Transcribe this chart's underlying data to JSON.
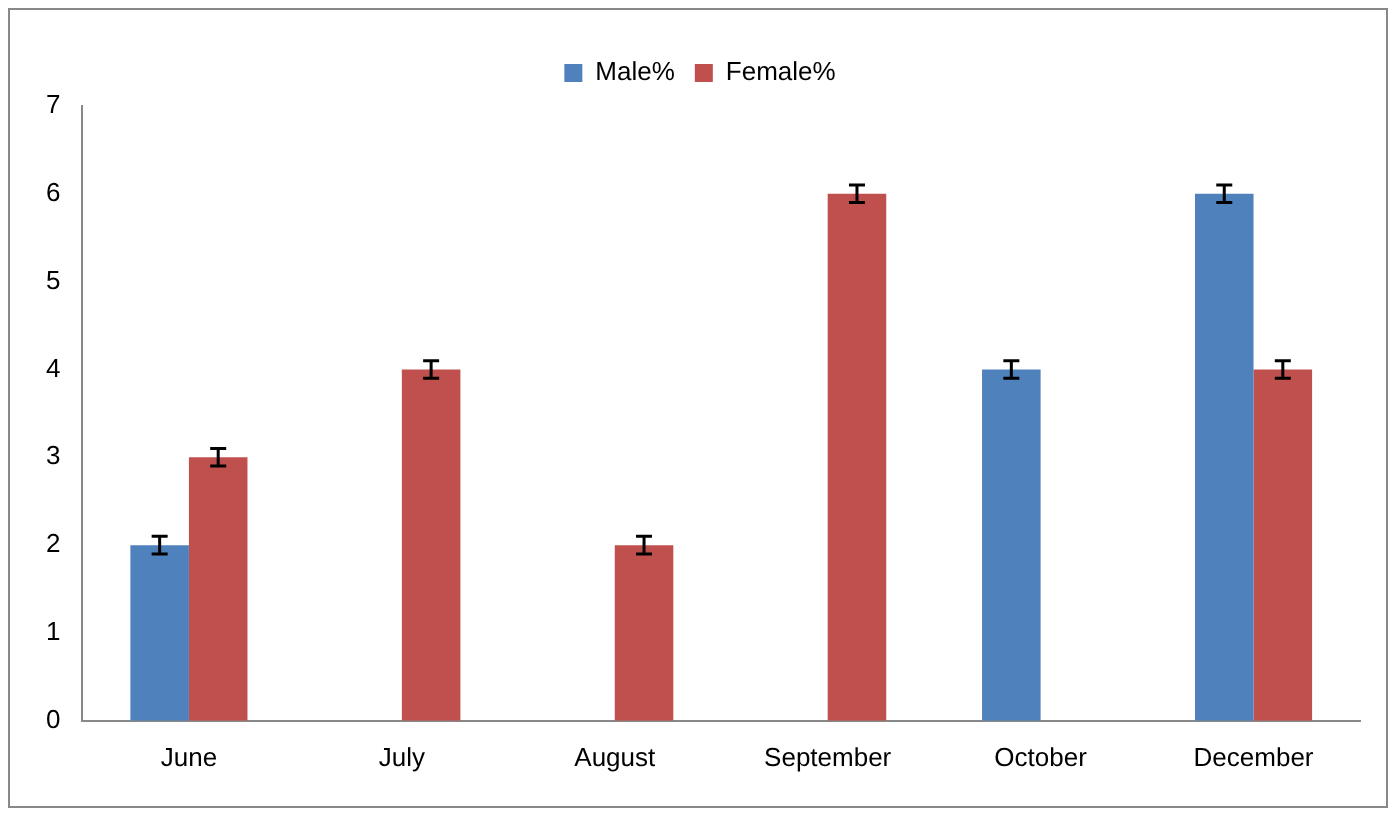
{
  "chart_data": {
    "type": "bar",
    "categories": [
      "June",
      "July",
      "August",
      "September",
      "October",
      "December"
    ],
    "series": [
      {
        "name": "Male%",
        "color": "#4f81bd",
        "values": [
          2,
          null,
          null,
          null,
          4,
          6
        ],
        "errors": [
          0.1,
          null,
          null,
          null,
          0.1,
          0.1
        ]
      },
      {
        "name": "Female%",
        "color": "#c0504d",
        "values": [
          3,
          4,
          2,
          6,
          null,
          4
        ],
        "errors": [
          0.1,
          0.1,
          0.1,
          0.1,
          null,
          0.1
        ]
      }
    ],
    "ylim": [
      0,
      7
    ],
    "yticks": [
      0,
      1,
      2,
      3,
      4,
      5,
      6,
      7
    ],
    "grid": false,
    "legend": "top"
  }
}
